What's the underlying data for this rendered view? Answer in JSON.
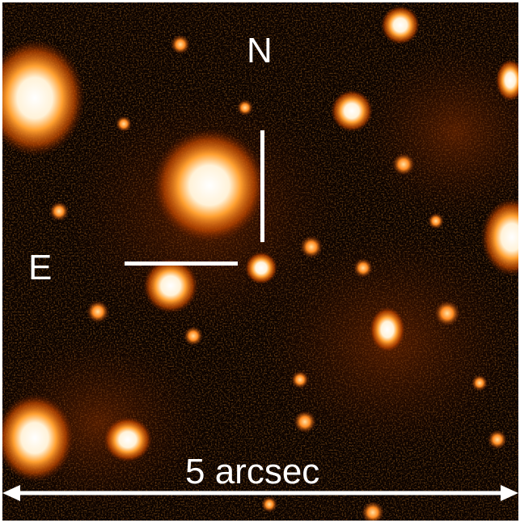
{
  "image": {
    "description_colors": {
      "background": "#0a0200",
      "glow": "#ff7a10",
      "core": "#ffffff"
    }
  },
  "labels": {
    "north": "N",
    "east": "E",
    "scale": "5 arcsec"
  }
}
